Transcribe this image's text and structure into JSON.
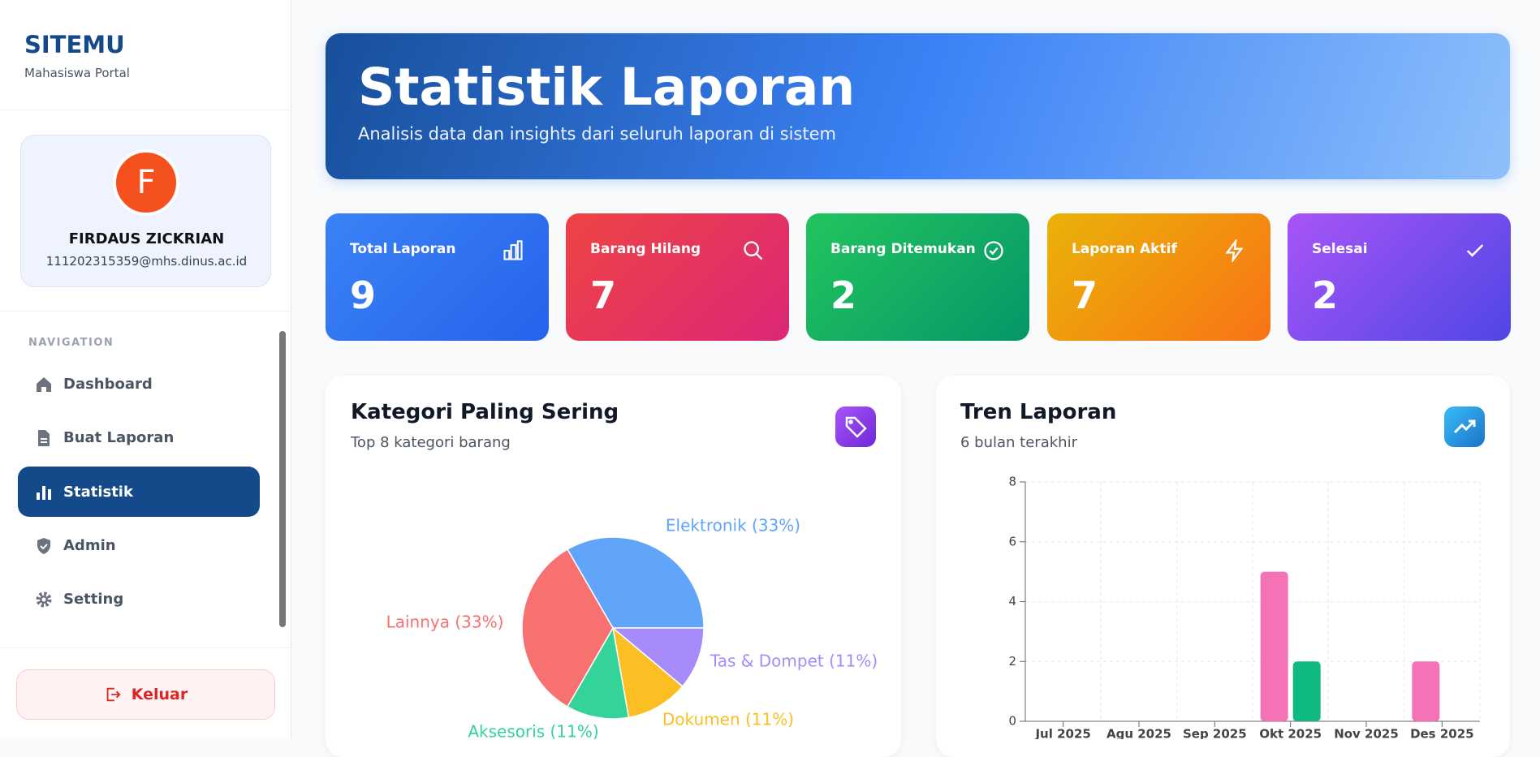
{
  "sidebar": {
    "logo": "SITEMU",
    "subtitle": "Mahasiswa Portal",
    "avatar": "F",
    "user_name": "FIRDAUS ZICKRIAN",
    "email": "111202315359@mhs.dinus.ac.id",
    "nav_heading": "NAVIGATION",
    "nav": [
      "Dashboard",
      "Buat Laporan",
      "Statistik",
      "Admin",
      "Setting"
    ],
    "logout": "Keluar"
  },
  "header": {
    "title": "Statistik Laporan",
    "subtitle": "Analisis data dan insights dari seluruh laporan di sistem"
  },
  "stats": [
    {
      "label": "Total Laporan",
      "value": 9
    },
    {
      "label": "Barang Hilang",
      "value": 7
    },
    {
      "label": "Barang Ditemukan",
      "value": 2
    },
    {
      "label": "Laporan Aktif",
      "value": 7
    },
    {
      "label": "Selesai",
      "value": 2
    }
  ],
  "chart_data": [
    {
      "type": "pie",
      "title": "Kategori Paling Sering",
      "subtitle": "Top 8 kategori barang",
      "labels": [
        "Elektronik (33%)",
        "Tas & Dompet (11%)",
        "Dokumen (11%)",
        "Aksesoris (11%)",
        "Lainnya (33%)"
      ],
      "values": [
        33,
        11,
        11,
        11,
        33
      ],
      "colors": [
        "#60a5fa",
        "#a78bfa",
        "#fbbf24",
        "#34d399",
        "#f87171"
      ]
    },
    {
      "type": "bar",
      "title": "Tren Laporan",
      "subtitle": "6 bulan terakhir",
      "categories": [
        "Jul 2025",
        "Agu 2025",
        "Sep 2025",
        "Okt 2025",
        "Nov 2025",
        "Des 2025"
      ],
      "series": [
        {
          "color": "#f472b6",
          "values": [
            0,
            0,
            0,
            5,
            0,
            2
          ]
        },
        {
          "color": "#10b981",
          "values": [
            0,
            0,
            0,
            2,
            0,
            0
          ]
        }
      ],
      "ylim": [
        0,
        8
      ],
      "yticks": [
        0,
        2,
        4,
        6,
        8
      ],
      "grid": true
    }
  ]
}
